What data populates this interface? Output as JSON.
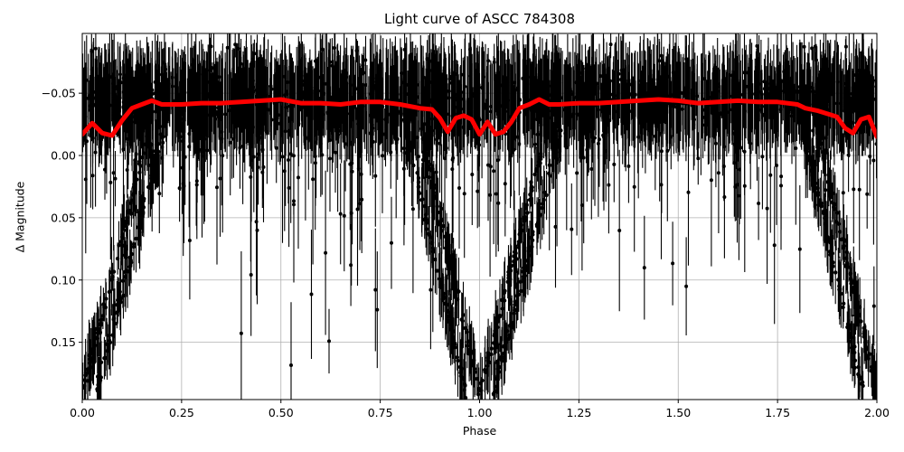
{
  "chart_data": {
    "type": "scatter",
    "title": "Light curve of ASCC 784308",
    "xlabel": "Phase",
    "ylabel": "Δ Magnitude",
    "xlim": [
      0.0,
      2.0
    ],
    "ylim": [
      0.196,
      -0.098
    ],
    "y_inverted": true,
    "grid": true,
    "legend": null,
    "x_ticks": [
      "0.00",
      "0.25",
      "0.50",
      "0.75",
      "1.00",
      "1.25",
      "1.50",
      "1.75",
      "2.00"
    ],
    "y_ticks": [
      "−0.05",
      "0.00",
      "0.05",
      "0.10",
      "0.15"
    ],
    "series": [
      {
        "name": "observations (with error bars)",
        "color": "#000000",
        "style": "errorbar points",
        "description": "Dense cloud of black points with vertical error bars centered near -0.045 mag (band approx -0.09 to 0.0), plus eclipse tracks descending to ~0.19 mag near phase 0.0/1.0/2.0",
        "band_center": -0.045,
        "band_range": [
          -0.085,
          -0.005
        ],
        "eclipse_tracks": [
          {
            "phase_start": 0.0,
            "phase_end": 0.17,
            "mag_start": 0.19,
            "mag_end": -0.02
          },
          {
            "phase_start": 0.85,
            "phase_end": 1.0,
            "mag_start": -0.02,
            "mag_end": 0.19
          },
          {
            "phase_start": 1.0,
            "phase_end": 1.17,
            "mag_start": 0.19,
            "mag_end": -0.02
          },
          {
            "phase_start": 1.85,
            "phase_end": 2.0,
            "mag_start": -0.02,
            "mag_end": 0.19
          }
        ]
      },
      {
        "name": "binned mean",
        "color": "#ff0000",
        "style": "thick line",
        "x": [
          0.0,
          0.025,
          0.05,
          0.075,
          0.1,
          0.125,
          0.15,
          0.175,
          0.2,
          0.25,
          0.3,
          0.35,
          0.4,
          0.45,
          0.5,
          0.55,
          0.6,
          0.65,
          0.7,
          0.75,
          0.8,
          0.85,
          0.88,
          0.9,
          0.92,
          0.94,
          0.96,
          0.98,
          1.0,
          1.02,
          1.04,
          1.06,
          1.08,
          1.1,
          1.125,
          1.15,
          1.175,
          1.2,
          1.25,
          1.3,
          1.35,
          1.4,
          1.45,
          1.5,
          1.55,
          1.6,
          1.65,
          1.7,
          1.75,
          1.8,
          1.82,
          1.85,
          1.88,
          1.9,
          1.92,
          1.94,
          1.96,
          1.98,
          2.0
        ],
        "y": [
          -0.017,
          -0.026,
          -0.018,
          -0.016,
          -0.028,
          -0.038,
          -0.041,
          -0.044,
          -0.041,
          -0.041,
          -0.042,
          -0.042,
          -0.043,
          -0.044,
          -0.045,
          -0.042,
          -0.042,
          -0.041,
          -0.043,
          -0.043,
          -0.041,
          -0.038,
          -0.037,
          -0.03,
          -0.019,
          -0.03,
          -0.032,
          -0.029,
          -0.017,
          -0.027,
          -0.017,
          -0.019,
          -0.027,
          -0.038,
          -0.041,
          -0.045,
          -0.041,
          -0.041,
          -0.042,
          -0.042,
          -0.043,
          -0.044,
          -0.045,
          -0.044,
          -0.042,
          -0.043,
          -0.044,
          -0.043,
          -0.043,
          -0.041,
          -0.038,
          -0.036,
          -0.033,
          -0.031,
          -0.022,
          -0.018,
          -0.029,
          -0.031,
          -0.015
        ]
      }
    ]
  }
}
